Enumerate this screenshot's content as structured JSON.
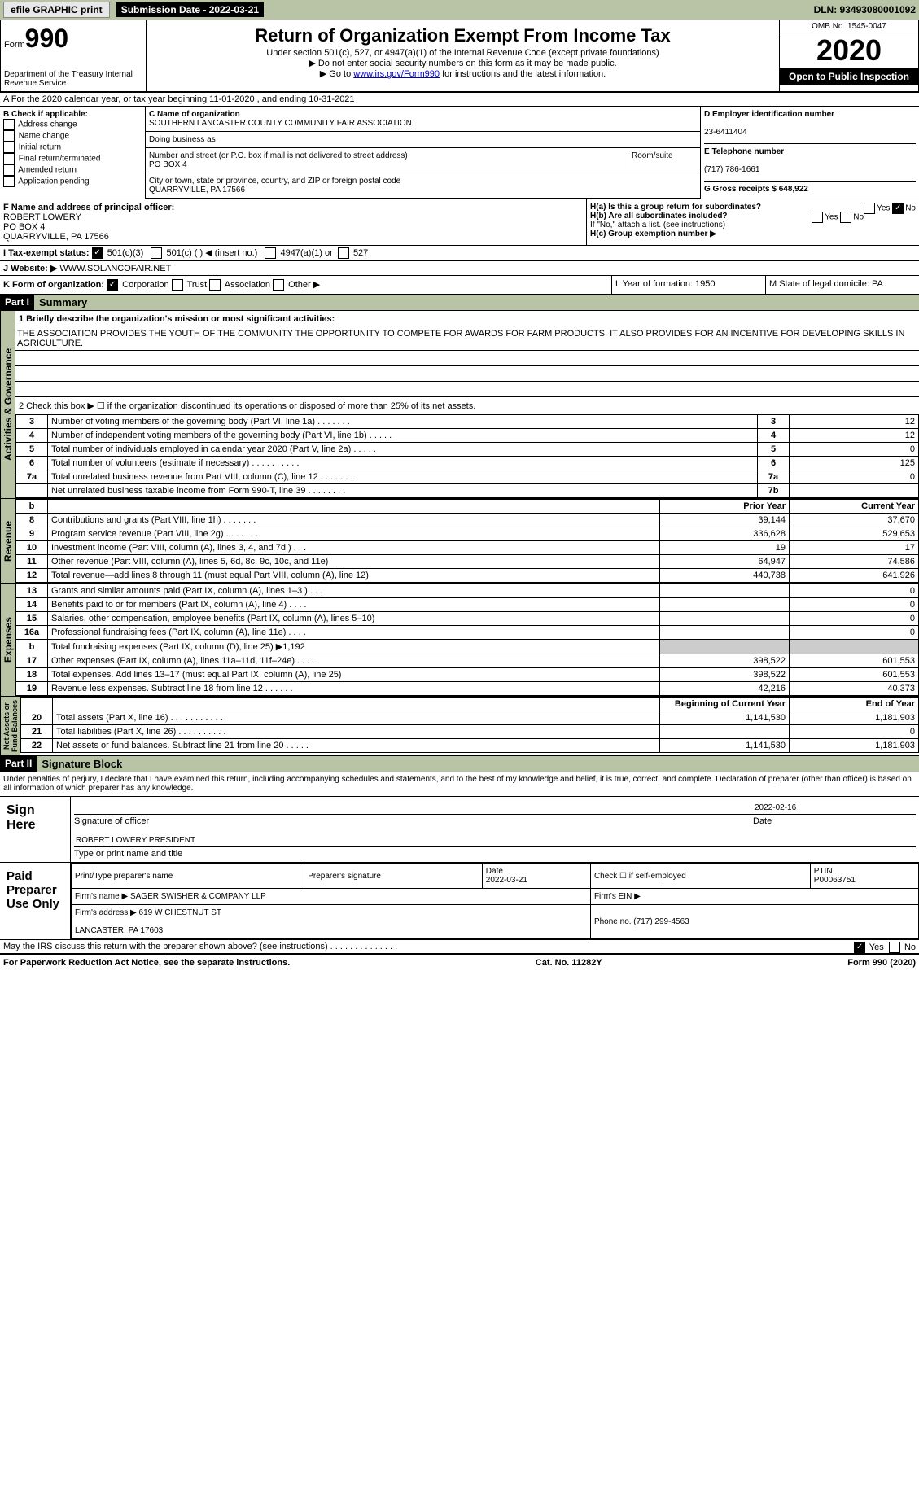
{
  "top": {
    "efile": "efile GRAPHIC print",
    "sub_date_lbl": "Submission Date - 2022-03-21",
    "dln": "DLN: 93493080001092"
  },
  "hdr": {
    "form": "Form",
    "num": "990",
    "dept": "Department of the Treasury\nInternal Revenue Service",
    "title": "Return of Organization Exempt From Income Tax",
    "subtitle": "Under section 501(c), 527, or 4947(a)(1) of the Internal Revenue Code (except private foundations)",
    "note1": "▶ Do not enter social security numbers on this form as it may be made public.",
    "note2_pre": "▶ Go to ",
    "note2_link": "www.irs.gov/Form990",
    "note2_post": " for instructions and the latest information.",
    "omb": "OMB No. 1545-0047",
    "year": "2020",
    "open": "Open to Public Inspection"
  },
  "lineA": "A For the 2020 calendar year, or tax year beginning 11-01-2020    , and ending 10-31-2021",
  "colB": {
    "lbl": "B Check if applicable:",
    "opts": [
      "Address change",
      "Name change",
      "Initial return",
      "Final return/terminated",
      "Amended return",
      "Application pending"
    ]
  },
  "colC": {
    "name_lbl": "C Name of organization",
    "name": "SOUTHERN LANCASTER COUNTY COMMUNITY FAIR ASSOCIATION",
    "dba_lbl": "Doing business as",
    "dba": "",
    "addr_lbl": "Number and street (or P.O. box if mail is not delivered to street address)",
    "room_lbl": "Room/suite",
    "addr": "PO BOX 4",
    "city_lbl": "City or town, state or province, country, and ZIP or foreign postal code",
    "city": "QUARRYVILLE, PA   17566"
  },
  "colD": {
    "d_lbl": "D Employer identification number",
    "d_val": "23-6411404",
    "e_lbl": "E Telephone number",
    "e_val": "(717) 786-1661",
    "g_lbl": "G Gross receipts $ 648,922"
  },
  "rowF": {
    "f_lbl": "F Name and address of principal officer:",
    "f_val": "ROBERT LOWERY\nPO BOX 4\nQUARRYVILLE, PA   17566",
    "ha": "H(a)  Is this a group return for subordinates?",
    "ha_yes": "Yes",
    "ha_no": "No",
    "hb": "H(b)  Are all subordinates included?",
    "hb_yes": "Yes",
    "hb_no": "No",
    "hb_note": "If \"No,\" attach a list. (see instructions)",
    "hc": "H(c)  Group exemption number ▶"
  },
  "rowI": {
    "lbl": "I     Tax-exempt status:",
    "o1": "501(c)(3)",
    "o2": "501(c) (  ) ◀ (insert no.)",
    "o3": "4947(a)(1) or",
    "o4": "527"
  },
  "rowJ": {
    "lbl": "J    Website: ▶",
    "val": "WWW.SOLANCOFAIR.NET"
  },
  "rowK": {
    "lbl": "K Form of organization:",
    "o1": "Corporation",
    "o2": "Trust",
    "o3": "Association",
    "o4": "Other ▶",
    "L": "L Year of formation: 1950",
    "M": "M State of legal domicile: PA"
  },
  "part1": {
    "part": "Part I",
    "title": "Summary",
    "l1_lbl": "1   Briefly describe the organization's mission or most significant activities:",
    "l1_txt": "THE ASSOCIATION PROVIDES THE YOUTH OF THE COMMUNITY THE OPPORTUNITY TO COMPETE FOR AWARDS FOR FARM PRODUCTS. IT ALSO PROVIDES FOR AN INCENTIVE FOR DEVELOPING SKILLS IN AGRICULTURE.",
    "l2": "2    Check this box ▶ ☐  if the organization discontinued its operations or disposed of more than 25% of its net assets.",
    "rows_num": [
      {
        "n": "3",
        "d": "Number of voting members of the governing body (Part VI, line 1a)   .    .    .    .    .    .    .",
        "b": "3",
        "v": "12"
      },
      {
        "n": "4",
        "d": "Number of independent voting members of the governing body (Part VI, line 1b)    .    .    .    .    .",
        "b": "4",
        "v": "12"
      },
      {
        "n": "5",
        "d": "Total number of individuals employed in calendar year 2020 (Part V, line 2a)    .    .    .    .    .",
        "b": "5",
        "v": "0"
      },
      {
        "n": "6",
        "d": "Total number of volunteers (estimate if necessary)    .    .    .    .    .    .    .    .    .    .",
        "b": "6",
        "v": "125"
      },
      {
        "n": "7a",
        "d": "Total unrelated business revenue from Part VIII, column (C), line 12    .    .    .    .    .    .    .",
        "b": "7a",
        "v": "0"
      },
      {
        "n": "",
        "d": "Net unrelated business taxable income from Form 990-T, line 39    .    .    .    .    .    .    .    .",
        "b": "7b",
        "v": ""
      }
    ],
    "hdr_b": "b",
    "hdr_prior": "Prior Year",
    "hdr_curr": "Current Year",
    "rev": [
      {
        "n": "8",
        "d": "Contributions and grants (Part VIII, line 1h)    .    .    .    .    .    .    .",
        "p": "39,144",
        "c": "37,670"
      },
      {
        "n": "9",
        "d": "Program service revenue (Part VIII, line 2g)    .    .    .    .    .    .    .",
        "p": "336,628",
        "c": "529,653"
      },
      {
        "n": "10",
        "d": "Investment income (Part VIII, column (A), lines 3, 4, and 7d )    .    .    .",
        "p": "19",
        "c": "17"
      },
      {
        "n": "11",
        "d": "Other revenue (Part VIII, column (A), lines 5, 6d, 8c, 9c, 10c, and 11e)",
        "p": "64,947",
        "c": "74,586"
      },
      {
        "n": "12",
        "d": "Total revenue—add lines 8 through 11 (must equal Part VIII, column (A), line 12)",
        "p": "440,738",
        "c": "641,926"
      }
    ],
    "exp": [
      {
        "n": "13",
        "d": "Grants and similar amounts paid (Part IX, column (A), lines 1–3 )    .    .    .",
        "p": "",
        "c": "0"
      },
      {
        "n": "14",
        "d": "Benefits paid to or for members (Part IX, column (A), line 4)    .    .    .    .",
        "p": "",
        "c": "0"
      },
      {
        "n": "15",
        "d": "Salaries, other compensation, employee benefits (Part IX, column (A), lines 5–10)",
        "p": "",
        "c": "0"
      },
      {
        "n": "16a",
        "d": "Professional fundraising fees (Part IX, column (A), line 11e)    .    .    .    .",
        "p": "",
        "c": "0"
      },
      {
        "n": "b",
        "d": "Total fundraising expenses (Part IX, column (D), line 25) ▶1,192",
        "p": "shade",
        "c": "shade"
      },
      {
        "n": "17",
        "d": "Other expenses (Part IX, column (A), lines 11a–11d, 11f–24e)    .    .    .    .",
        "p": "398,522",
        "c": "601,553"
      },
      {
        "n": "18",
        "d": "Total expenses. Add lines 13–17 (must equal Part IX, column (A), line 25)",
        "p": "398,522",
        "c": "601,553"
      },
      {
        "n": "19",
        "d": "Revenue less expenses. Subtract line 18 from line 12    .    .    .    .    .    .",
        "p": "42,216",
        "c": "40,373"
      }
    ],
    "hdr_beg": "Beginning of Current Year",
    "hdr_end": "End of Year",
    "net": [
      {
        "n": "20",
        "d": "Total assets (Part X, line 16)    .    .    .    .    .    .    .    .    .    .    .",
        "p": "1,141,530",
        "c": "1,181,903"
      },
      {
        "n": "21",
        "d": "Total liabilities (Part X, line 26)    .    .    .    .    .    .    .    .    .    .",
        "p": "",
        "c": "0"
      },
      {
        "n": "22",
        "d": "Net assets or fund balances. Subtract line 21 from line 20    .    .    .    .    .",
        "p": "1,141,530",
        "c": "1,181,903"
      }
    ]
  },
  "part2": {
    "part": "Part II",
    "title": "Signature Block",
    "decl": "Under penalties of perjury, I declare that I have examined this return, including accompanying schedules and statements, and to the best of my knowledge and belief, it is true, correct, and complete. Declaration of preparer (other than officer) is based on all information of which preparer has any knowledge."
  },
  "sign": {
    "here": "Sign Here",
    "sig_lbl": "Signature of officer",
    "date_lbl": "Date",
    "date": "2022-02-16",
    "name": "ROBERT LOWERY PRESIDENT",
    "name_lbl": "Type or print name and title"
  },
  "prep": {
    "here": "Paid Preparer Use Only",
    "h1": "Print/Type preparer's name",
    "h2": "Preparer's signature",
    "h3": "Date",
    "h3v": "2022-03-21",
    "h4": "Check ☐ if self-employed",
    "h5": "PTIN",
    "h5v": "P00063751",
    "firm_lbl": "Firm's name    ▶",
    "firm": "SAGER SWISHER & COMPANY LLP",
    "ein_lbl": "Firm's EIN ▶",
    "addr_lbl": "Firm's address ▶",
    "addr": "619 W CHESTNUT ST\n\nLANCASTER, PA   17603",
    "phone_lbl": "Phone no. (717) 299-4563"
  },
  "may": {
    "txt": "May the IRS discuss this return with the preparer shown above? (see instructions)    .    .    .    .    .    .    .    .    .    .    .    .    .    .",
    "yes": "Yes",
    "no": "No"
  },
  "ftr": {
    "l": "For Paperwork Reduction Act Notice, see the separate instructions.",
    "m": "Cat. No. 11282Y",
    "r": "Form 990 (2020)"
  }
}
